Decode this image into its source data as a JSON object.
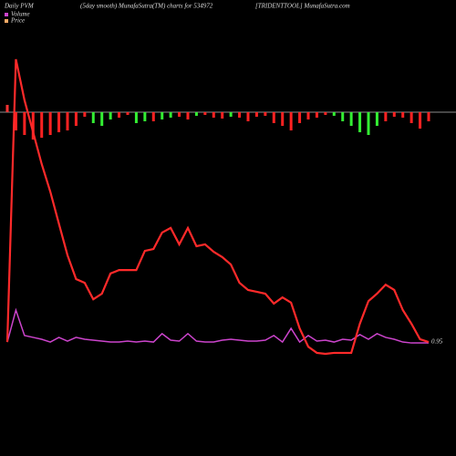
{
  "chart_data": {
    "type": "pvm",
    "title_left": "Daily PVM",
    "title_center": "(5day smooth) MunafaSutra(TM) charts for 534972",
    "title_right": "[TRIDENTTOOL] MunafaSutra.com",
    "last_label": "0.95",
    "ylim": [
      0,
      100
    ],
    "bar_ylim": [
      -40,
      40
    ],
    "series": [
      {
        "name": "Volume",
        "color": "#cc44cc",
        "values": [
          4.4,
          14.7,
          6.5,
          5.9,
          5.3,
          4.4,
          5.9,
          4.7,
          5.9,
          5.3,
          5.0,
          4.7,
          4.4,
          4.4,
          4.7,
          4.4,
          4.7,
          4.4,
          7.1,
          5.0,
          4.7,
          7.1,
          4.7,
          4.4,
          4.4,
          5.0,
          5.3,
          5.0,
          4.7,
          4.7,
          5.0,
          6.5,
          4.4,
          8.8,
          4.4,
          6.5,
          4.7,
          5.0,
          4.4,
          5.3,
          5.0,
          6.8,
          5.3,
          7.1,
          5.9,
          5.3,
          4.4,
          4.1,
          4.1,
          4.1
        ]
      },
      {
        "name": "Price",
        "color": "#ff2a2a",
        "values": [
          4.4,
          95.6,
          82.4,
          72.1,
          61.8,
          52.9,
          42.6,
          32.4,
          24.7,
          23.5,
          18.2,
          20.0,
          26.5,
          27.6,
          27.6,
          27.6,
          33.8,
          34.4,
          39.7,
          41.2,
          35.9,
          41.2,
          35.3,
          35.9,
          33.5,
          31.8,
          29.4,
          23.5,
          21.2,
          20.6,
          20.0,
          16.8,
          18.8,
          17.1,
          8.8,
          2.9,
          0.9,
          0.6,
          0.9,
          0.9,
          0.9,
          10.3,
          17.6,
          20.0,
          22.9,
          21.2,
          14.7,
          10.3,
          5.3,
          4.4
        ]
      }
    ],
    "bars": {
      "values": [
        8,
        -20,
        -25,
        -30,
        -28,
        -25,
        -22,
        -20,
        -15,
        -5,
        -12,
        -15,
        -8,
        -6,
        -3,
        -12,
        -10,
        -10,
        -8,
        -6,
        -5,
        -8,
        -4,
        -3,
        -6,
        -7,
        -5,
        -6,
        -10,
        -5,
        -4,
        -12,
        -15,
        -20,
        -12,
        -8,
        -6,
        -3,
        -4,
        -10,
        -15,
        -22,
        -25,
        -15,
        -10,
        -5,
        -6,
        -12,
        -18,
        -10
      ],
      "colors": [
        "#ff3333",
        "#ff2222",
        "#ff2222",
        "#ff2222",
        "#ff2222",
        "#ff2222",
        "#ff2222",
        "#ff2222",
        "#ff2222",
        "#ff2222",
        "#33ee33",
        "#33ee33",
        "#33ee33",
        "#ff2222",
        "#ff2222",
        "#33ee33",
        "#33ee33",
        "#ff2222",
        "#33ee33",
        "#33ee33",
        "#ff2222",
        "#ff2222",
        "#33ee33",
        "#ff2222",
        "#ff2222",
        "#ff2222",
        "#33ee33",
        "#ff2222",
        "#ff2222",
        "#ff2222",
        "#ff2222",
        "#ff2222",
        "#ff2222",
        "#ff2222",
        "#ff2222",
        "#ff2222",
        "#ff2222",
        "#ff2222",
        "#33ee33",
        "#33ee33",
        "#33ee33",
        "#33ee33",
        "#33ee33",
        "#33ee33",
        "#ff2222",
        "#ff2222",
        "#ff2222",
        "#ff2222",
        "#ff2222",
        "#ff2222"
      ]
    },
    "baseline_color": "#bbbbbb"
  }
}
